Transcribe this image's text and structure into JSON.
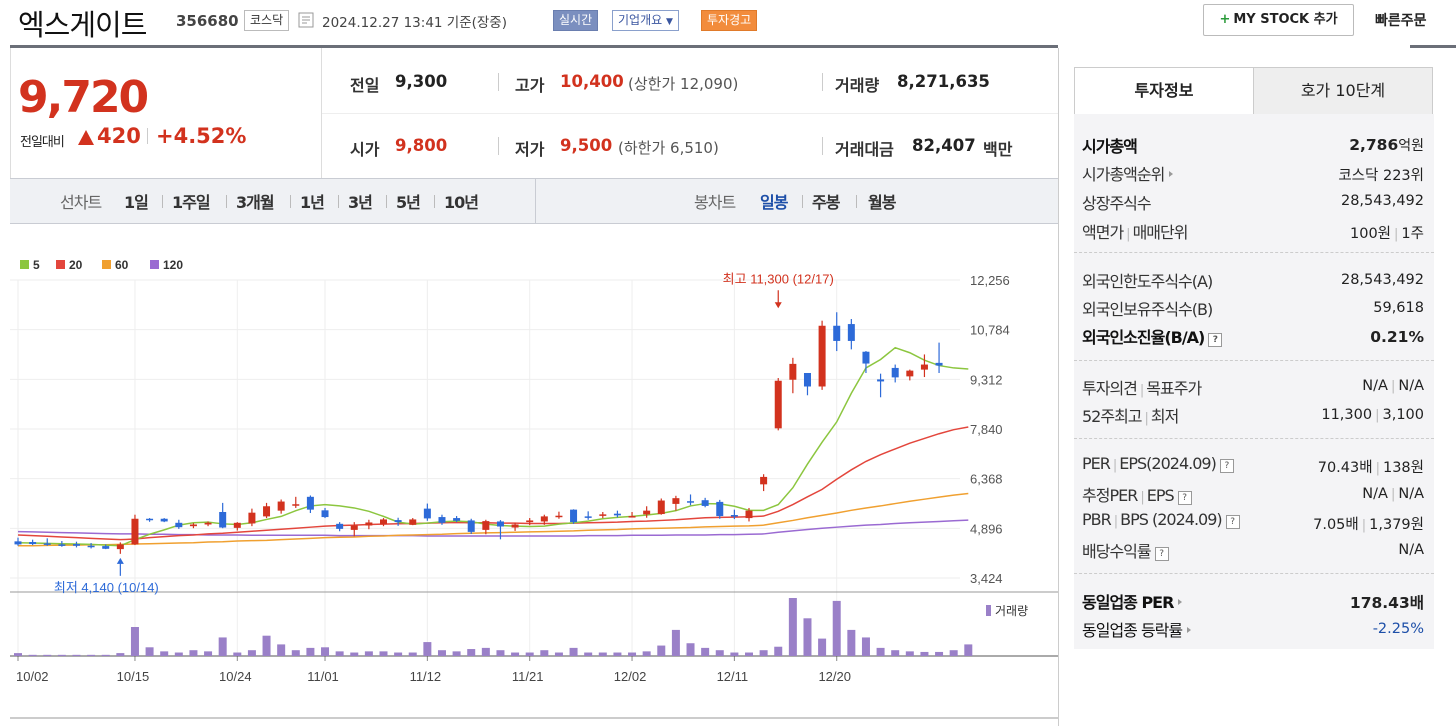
{
  "header": {
    "name": "엑스게이트",
    "code": "356680",
    "market": "코스닥",
    "time": "2024.12.27 13:41 기준(장중)",
    "realtime": "실시간",
    "company_info": "기업개요",
    "warning": "투자경고",
    "mystock": "MY STOCK 추가",
    "quick_order": "빠른주문"
  },
  "price": {
    "current": "9,720",
    "change_label": "전일대비",
    "change": "420",
    "change_pct": "+4.52%",
    "prev_label": "전일",
    "prev": "9,300",
    "high_label": "고가",
    "high": "10,400",
    "upper_limit": "(상한가 12,090)",
    "volume_label": "거래량",
    "volume": "8,271,635",
    "open_label": "시가",
    "open": "9,800",
    "low_label": "저가",
    "low": "9,500",
    "lower_limit": "(하한가 6,510)",
    "amount_label": "거래대금",
    "amount": "82,407",
    "amount_unit": "백만"
  },
  "period_bar": {
    "line_label": "선차트",
    "line_items": [
      "1일",
      "1주일",
      "3개월",
      "1년",
      "3년",
      "5년",
      "10년"
    ],
    "candle_label": "봉차트",
    "candle_items": [
      "일봉",
      "주봉",
      "월봉"
    ],
    "active": "일봉"
  },
  "chart_data": {
    "type": "candlestick",
    "legend": [
      "5",
      "20",
      "60",
      "120"
    ],
    "colors": {
      "ma5": "#8cc63f",
      "ma20": "#e3463c",
      "ma60": "#f0a030",
      "ma120": "#9a6ad2",
      "up": "#d2321e",
      "down": "#2d6ad8",
      "volume": "#9a80c8"
    },
    "y_ticks": [
      "12,256",
      "10,784",
      "9,312",
      "7,840",
      "6,368",
      "4,896",
      "3,424"
    ],
    "ylim": [
      3424,
      12256
    ],
    "x_ticks": [
      "10/02",
      "10/15",
      "10/24",
      "11/01",
      "11/12",
      "11/21",
      "12/02",
      "12/11",
      "12/20"
    ],
    "x_tick_index": [
      0,
      8,
      15,
      21,
      28,
      35,
      42,
      49,
      56
    ],
    "max_label": "최고 11,300 (12/17)",
    "max_index": 52,
    "max_value": 11300,
    "min_label": "최저 4,140 (10/14)",
    "min_index": 7,
    "min_value": 4140,
    "volume_label": "거래량",
    "candles": [
      {
        "o": 4510,
        "h": 4620,
        "l": 4380,
        "c": 4420
      },
      {
        "o": 4490,
        "h": 4560,
        "l": 4400,
        "c": 4430
      },
      {
        "o": 4450,
        "h": 4600,
        "l": 4380,
        "c": 4430
      },
      {
        "o": 4420,
        "h": 4520,
        "l": 4350,
        "c": 4400
      },
      {
        "o": 4430,
        "h": 4500,
        "l": 4330,
        "c": 4380
      },
      {
        "o": 4380,
        "h": 4460,
        "l": 4300,
        "c": 4350
      },
      {
        "o": 4370,
        "h": 4420,
        "l": 4280,
        "c": 4290
      },
      {
        "o": 4280,
        "h": 4480,
        "l": 4140,
        "c": 4420
      },
      {
        "o": 4420,
        "h": 5300,
        "l": 4400,
        "c": 5180
      },
      {
        "o": 5180,
        "h": 5200,
        "l": 5090,
        "c": 5160
      },
      {
        "o": 5180,
        "h": 5200,
        "l": 5080,
        "c": 5100
      },
      {
        "o": 5060,
        "h": 5150,
        "l": 4880,
        "c": 4930
      },
      {
        "o": 4960,
        "h": 5050,
        "l": 4900,
        "c": 5010
      },
      {
        "o": 5010,
        "h": 5100,
        "l": 4960,
        "c": 5060
      },
      {
        "o": 5380,
        "h": 5650,
        "l": 4900,
        "c": 4920
      },
      {
        "o": 4910,
        "h": 5080,
        "l": 4830,
        "c": 5060
      },
      {
        "o": 5040,
        "h": 5480,
        "l": 4960,
        "c": 5360
      },
      {
        "o": 5250,
        "h": 5650,
        "l": 5200,
        "c": 5550
      },
      {
        "o": 5420,
        "h": 5750,
        "l": 5330,
        "c": 5690
      },
      {
        "o": 5600,
        "h": 5830,
        "l": 5500,
        "c": 5610
      },
      {
        "o": 5830,
        "h": 5870,
        "l": 5350,
        "c": 5450
      },
      {
        "o": 5430,
        "h": 5500,
        "l": 5200,
        "c": 5230
      },
      {
        "o": 5030,
        "h": 5080,
        "l": 4810,
        "c": 4880
      },
      {
        "o": 4850,
        "h": 5080,
        "l": 4660,
        "c": 4980
      },
      {
        "o": 4980,
        "h": 5150,
        "l": 4870,
        "c": 5070
      },
      {
        "o": 5020,
        "h": 5200,
        "l": 4960,
        "c": 5160
      },
      {
        "o": 5140,
        "h": 5210,
        "l": 4970,
        "c": 5080
      },
      {
        "o": 5000,
        "h": 5200,
        "l": 4990,
        "c": 5160
      },
      {
        "o": 5480,
        "h": 5630,
        "l": 5120,
        "c": 5190
      },
      {
        "o": 5230,
        "h": 5300,
        "l": 5000,
        "c": 5060
      },
      {
        "o": 5200,
        "h": 5260,
        "l": 5080,
        "c": 5120
      },
      {
        "o": 5130,
        "h": 5180,
        "l": 4730,
        "c": 4790
      },
      {
        "o": 4850,
        "h": 5150,
        "l": 4720,
        "c": 5110
      },
      {
        "o": 5100,
        "h": 5140,
        "l": 4570,
        "c": 4950
      },
      {
        "o": 4920,
        "h": 5060,
        "l": 4820,
        "c": 5010
      },
      {
        "o": 5080,
        "h": 5200,
        "l": 4990,
        "c": 5130
      },
      {
        "o": 5100,
        "h": 5300,
        "l": 5000,
        "c": 5250
      },
      {
        "o": 5270,
        "h": 5390,
        "l": 5180,
        "c": 5270
      },
      {
        "o": 5450,
        "h": 5460,
        "l": 5030,
        "c": 5080
      },
      {
        "o": 5250,
        "h": 5400,
        "l": 5150,
        "c": 5210
      },
      {
        "o": 5290,
        "h": 5380,
        "l": 5200,
        "c": 5310
      },
      {
        "o": 5330,
        "h": 5420,
        "l": 5220,
        "c": 5280
      },
      {
        "o": 5250,
        "h": 5380,
        "l": 5230,
        "c": 5260
      },
      {
        "o": 5310,
        "h": 5550,
        "l": 5210,
        "c": 5420
      },
      {
        "o": 5320,
        "h": 5780,
        "l": 5300,
        "c": 5720
      },
      {
        "o": 5620,
        "h": 5860,
        "l": 5420,
        "c": 5790
      },
      {
        "o": 5700,
        "h": 5900,
        "l": 5580,
        "c": 5690
      },
      {
        "o": 5730,
        "h": 5800,
        "l": 5520,
        "c": 5560
      },
      {
        "o": 5680,
        "h": 5740,
        "l": 5180,
        "c": 5260
      },
      {
        "o": 5290,
        "h": 5450,
        "l": 5170,
        "c": 5250
      },
      {
        "o": 5200,
        "h": 5500,
        "l": 5100,
        "c": 5420
      },
      {
        "o": 6200,
        "h": 6500,
        "l": 6000,
        "c": 6420
      },
      {
        "o": 7860,
        "h": 9350,
        "l": 7800,
        "c": 9270
      },
      {
        "o": 9300,
        "h": 9950,
        "l": 8900,
        "c": 9770
      },
      {
        "o": 9500,
        "h": 9500,
        "l": 8840,
        "c": 9100
      },
      {
        "o": 9100,
        "h": 11050,
        "l": 9000,
        "c": 10900
      },
      {
        "o": 10900,
        "h": 11300,
        "l": 10150,
        "c": 10450
      },
      {
        "o": 10950,
        "h": 11100,
        "l": 10200,
        "c": 10450
      },
      {
        "o": 10130,
        "h": 10150,
        "l": 9500,
        "c": 9780
      },
      {
        "o": 9310,
        "h": 9480,
        "l": 8780,
        "c": 9250
      },
      {
        "o": 9650,
        "h": 9750,
        "l": 9220,
        "c": 9370
      },
      {
        "o": 9400,
        "h": 9600,
        "l": 9280,
        "c": 9570
      },
      {
        "o": 9600,
        "h": 10050,
        "l": 9380,
        "c": 9750
      },
      {
        "o": 9800,
        "h": 10400,
        "l": 9500,
        "c": 9720
      }
    ],
    "ma5": [
      4470,
      4460,
      4450,
      4440,
      4430,
      4420,
      4400,
      4380,
      4560,
      4720,
      4850,
      4990,
      5060,
      5080,
      5030,
      5010,
      5060,
      5160,
      5250,
      5420,
      5560,
      5600,
      5560,
      5500,
      5400,
      5250,
      5080,
      5020,
      5050,
      5090,
      5110,
      5090,
      5020,
      4980,
      4960,
      4950,
      4960,
      5020,
      5060,
      5110,
      5180,
      5220,
      5250,
      5290,
      5340,
      5420,
      5560,
      5630,
      5620,
      5550,
      5430,
      5430,
      5600,
      6100,
      6800,
      7450,
      8050,
      8900,
      9650,
      9900,
      10250,
      10100,
      9880,
      9720,
      9650,
      9620
    ],
    "ma20": [
      4700,
      4680,
      4660,
      4640,
      4620,
      4600,
      4580,
      4560,
      4580,
      4620,
      4650,
      4680,
      4700,
      4730,
      4750,
      4780,
      4810,
      4840,
      4870,
      4900,
      4930,
      4960,
      4980,
      4990,
      5010,
      5020,
      5030,
      5040,
      5050,
      5060,
      5070,
      5060,
      5060,
      5050,
      5050,
      5040,
      5040,
      5040,
      5050,
      5060,
      5070,
      5080,
      5100,
      5110,
      5130,
      5150,
      5180,
      5210,
      5220,
      5230,
      5240,
      5260,
      5400,
      5600,
      5830,
      6050,
      6350,
      6630,
      6880,
      7080,
      7250,
      7420,
      7560,
      7700,
      7820,
      7900
    ],
    "ma60": [
      4380,
      4380,
      4390,
      4400,
      4400,
      4410,
      4410,
      4420,
      4430,
      4440,
      4450,
      4460,
      4470,
      4490,
      4500,
      4520,
      4530,
      4540,
      4560,
      4580,
      4600,
      4620,
      4630,
      4640,
      4660,
      4670,
      4690,
      4700,
      4710,
      4720,
      4740,
      4750,
      4760,
      4770,
      4780,
      4790,
      4800,
      4810,
      4820,
      4840,
      4850,
      4860,
      4880,
      4890,
      4900,
      4910,
      4920,
      4940,
      4950,
      4960,
      4970,
      4990,
      5060,
      5130,
      5210,
      5280,
      5350,
      5430,
      5500,
      5560,
      5630,
      5700,
      5760,
      5820,
      5880,
      5930
    ],
    "ma120": [
      4800,
      4790,
      4780,
      4770,
      4760,
      4750,
      4740,
      4730,
      4730,
      4720,
      4720,
      4710,
      4710,
      4700,
      4700,
      4700,
      4690,
      4690,
      4690,
      4690,
      4690,
      4690,
      4680,
      4680,
      4680,
      4680,
      4680,
      4680,
      4670,
      4670,
      4670,
      4670,
      4670,
      4670,
      4670,
      4670,
      4670,
      4670,
      4670,
      4680,
      4680,
      4680,
      4690,
      4690,
      4690,
      4700,
      4700,
      4700,
      4710,
      4710,
      4720,
      4730,
      4780,
      4820,
      4860,
      4900,
      4930,
      4960,
      4990,
      5010,
      5040,
      5060,
      5080,
      5100,
      5120,
      5140
    ],
    "volume": [
      0.05,
      0.02,
      0.02,
      0.02,
      0.02,
      0.02,
      0.02,
      0.05,
      0.5,
      0.15,
      0.08,
      0.06,
      0.1,
      0.08,
      0.32,
      0.06,
      0.1,
      0.35,
      0.2,
      0.1,
      0.14,
      0.15,
      0.08,
      0.06,
      0.08,
      0.08,
      0.06,
      0.06,
      0.24,
      0.1,
      0.08,
      0.12,
      0.14,
      0.1,
      0.06,
      0.06,
      0.1,
      0.06,
      0.14,
      0.06,
      0.06,
      0.06,
      0.06,
      0.08,
      0.18,
      0.45,
      0.22,
      0.14,
      0.1,
      0.06,
      0.06,
      0.1,
      0.16,
      1.0,
      0.65,
      0.3,
      0.95,
      0.45,
      0.32,
      0.14,
      0.1,
      0.08,
      0.07,
      0.07,
      0.1,
      0.2
    ]
  },
  "tabs": {
    "invest": "투자정보",
    "hoga": "호가 10단계"
  },
  "invest": {
    "mcap_label": "시가총액",
    "mcap": "2,786",
    "mcap_unit": "억원",
    "mcap_rank_label": "시가총액순위",
    "mcap_rank": "코스닥 223위",
    "shares_label": "상장주식수",
    "shares": "28,543,492",
    "par_label": "액면가",
    "unit_label": "매매단위",
    "par": "100원",
    "unit": "1주",
    "foreign_limit_label": "외국인한도주식수(A)",
    "foreign_limit": "28,543,492",
    "foreign_hold_label": "외국인보유주식수(B)",
    "foreign_hold": "59,618",
    "foreign_ratio_label": "외국인소진율(B/A)",
    "foreign_ratio": "0.21%",
    "opinion_label": "투자의견",
    "target_label": "목표주가",
    "opinion": "N/A",
    "target": "N/A",
    "w52_high_label": "52주최고",
    "w52_low_label": "최저",
    "w52_high": "11,300",
    "w52_low": "3,100",
    "per_label": "PER",
    "eps_label": "EPS(2024.09)",
    "per": "70.43배",
    "eps": "138원",
    "est_per_label": "추정PER",
    "est_eps_label": "EPS",
    "est_per": "N/A",
    "est_eps": "N/A",
    "pbr_label": "PBR",
    "bps_label": "BPS (2024.09)",
    "pbr": "7.05배",
    "bps": "1,379원",
    "div_label": "배당수익률",
    "div": "N/A",
    "ind_per_label": "동일업종 PER",
    "ind_per": "178.43배",
    "ind_chg_label": "동일업종 등락률",
    "ind_chg": "-2.25%"
  }
}
